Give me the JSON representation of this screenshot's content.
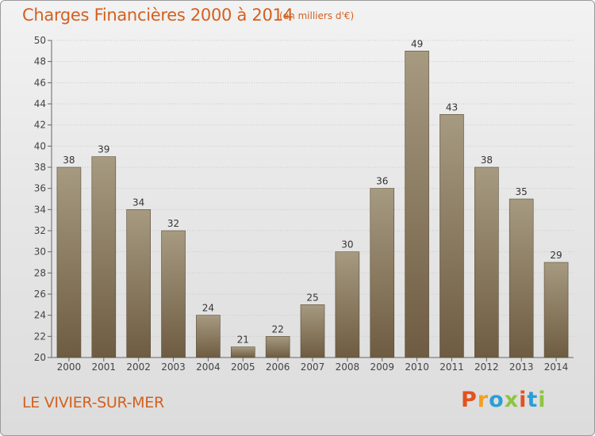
{
  "header": {
    "title": "Charges Financières 2000 à 2014",
    "unit": "(en milliers d'€)"
  },
  "footer": {
    "commune": "LE VIVIER-SUR-MER",
    "logo_letters": [
      "P",
      "r",
      "o",
      "x",
      "i",
      "t",
      "i"
    ]
  },
  "colors": {
    "accent": "#d4601e",
    "bar_top": "#a69a80",
    "bar_bottom": "#6e5c42",
    "logo": [
      "#e3521e",
      "#f2a11f",
      "#2a9fd6",
      "#8cc63f",
      "#e3521e",
      "#2a9fd6",
      "#8cc63f"
    ]
  },
  "chart_data": {
    "type": "bar",
    "title": "Charges Financières 2000 à 2014",
    "xlabel": "",
    "ylabel": "",
    "categories": [
      "2000",
      "2001",
      "2002",
      "2003",
      "2004",
      "2005",
      "2006",
      "2007",
      "2008",
      "2009",
      "2010",
      "2011",
      "2012",
      "2013",
      "2014"
    ],
    "values": [
      38,
      39,
      34,
      32,
      24,
      21,
      22,
      25,
      30,
      36,
      49,
      43,
      38,
      35,
      29
    ],
    "ylim": [
      20,
      50
    ],
    "yticks": [
      20,
      22,
      24,
      26,
      28,
      30,
      32,
      34,
      36,
      38,
      40,
      42,
      44,
      46,
      48,
      50
    ],
    "grid": true,
    "data_labels": true
  }
}
